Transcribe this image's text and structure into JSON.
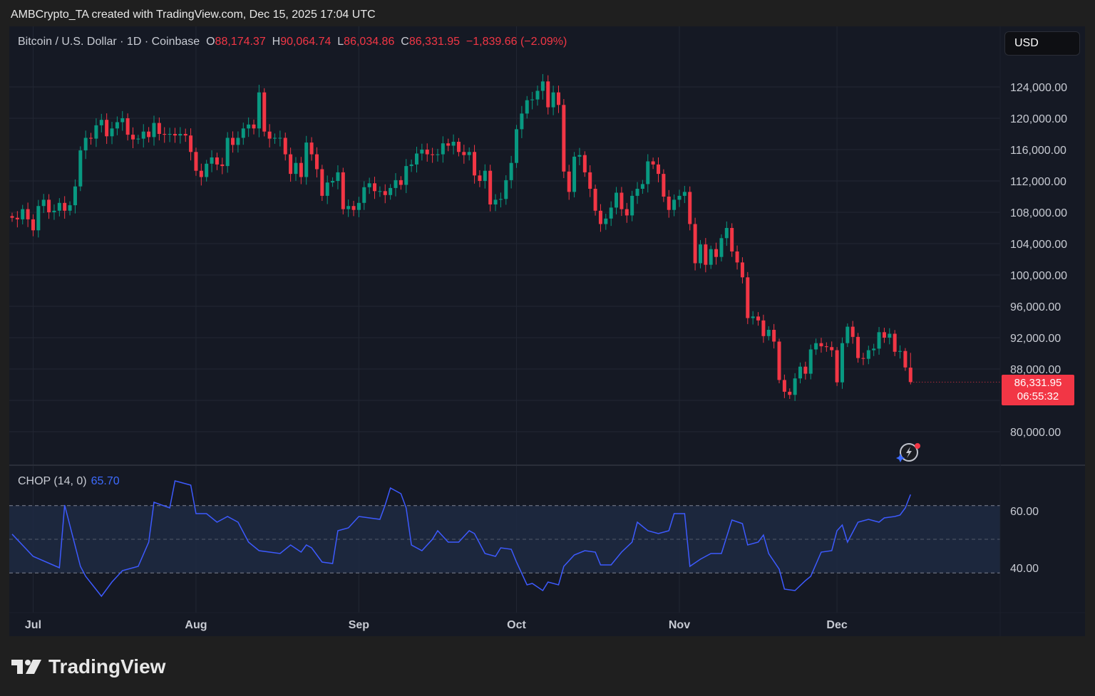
{
  "credit": "AMBCrypto_TA created with TradingView.com, Dec 15, 2025 17:04 UTC",
  "legend": {
    "symbol": "Bitcoin / U.S. Dollar · 1D · Coinbase",
    "o_label": "O",
    "o": "88,174.37",
    "h_label": "H",
    "h": "90,064.74",
    "l_label": "L",
    "l": "86,034.86",
    "c_label": "C",
    "c": "86,331.95",
    "change": "−1,839.66 (−2.09%)"
  },
  "currency_button": "USD",
  "price_tag": {
    "price": "86,331.95",
    "countdown": "06:55:32"
  },
  "indicator": {
    "name": "CHOP (14, 0)",
    "value": "65.70"
  },
  "brand": "TradingView",
  "colors": {
    "up": "#089981",
    "down": "#f23645",
    "chop": "#3d5afe",
    "band": "#1e2a44"
  },
  "chart_data": [
    {
      "type": "candlestick",
      "title": "Bitcoin / U.S. Dollar · 1D · Coinbase",
      "start_date": "2025-06-27",
      "interval": "1D",
      "ylim": [
        76000,
        128500
      ],
      "y_ticks": [
        124000,
        120000,
        116000,
        112000,
        108000,
        104000,
        100000,
        96000,
        92000,
        88000,
        80000
      ],
      "y_tick_labels": [
        "124,000.00",
        "120,000.00",
        "116,000.00",
        "112,000.00",
        "108,000.00",
        "104,000.00",
        "100,000.00",
        "96,000.00",
        "92,000.00",
        "88,000.00",
        "80,000.00"
      ],
      "x_ticks": [
        {
          "label": "Jul",
          "day": 4
        },
        {
          "label": "Aug",
          "day": 35
        },
        {
          "label": "Sep",
          "day": 66
        },
        {
          "label": "Oct",
          "day": 96
        },
        {
          "label": "Nov",
          "day": 127
        },
        {
          "label": "Dec",
          "day": 157
        }
      ],
      "last_ohlc": {
        "open": 88174.37,
        "high": 90064.74,
        "low": 86034.86,
        "close": 86331.95
      },
      "closes": [
        107300,
        107100,
        108400,
        107100,
        105700,
        108800,
        109600,
        108000,
        108200,
        109200,
        108200,
        108900,
        111300,
        115900,
        117500,
        117400,
        119100,
        119800,
        117700,
        118700,
        119500,
        120000,
        117900,
        117300,
        117400,
        118300,
        117600,
        119400,
        118000,
        117900,
        118000,
        117800,
        118000,
        117800,
        115700,
        113300,
        112500,
        114200,
        115000,
        114100,
        113900,
        117500,
        116600,
        117500,
        118700,
        119200,
        118700,
        123300,
        118300,
        117400,
        117500,
        117500,
        115400,
        112900,
        114300,
        112500,
        116900,
        115400,
        113500,
        110100,
        111800,
        112000,
        113100,
        108400,
        108800,
        108300,
        109200,
        111200,
        111700,
        110700,
        110700,
        110200,
        111100,
        112100,
        111500,
        113900,
        114100,
        115500,
        116000,
        115400,
        115300,
        115400,
        116800,
        116500,
        117000,
        115700,
        115300,
        115700,
        112700,
        112000,
        113300,
        109000,
        109600,
        109700,
        112100,
        114300,
        118600,
        120600,
        122300,
        122400,
        123500,
        124700,
        121400,
        123300,
        121700,
        113200,
        110600,
        115100,
        115300,
        113100,
        111000,
        108200,
        106500,
        107200,
        108600,
        110500,
        108400,
        107600,
        110100,
        111000,
        111600,
        114500,
        114100,
        112900,
        110000,
        108300,
        109600,
        110100,
        110600,
        106500,
        101500,
        103900,
        101300,
        103300,
        102300,
        104700,
        106000,
        103000,
        101600,
        99700,
        94500,
        94700,
        94200,
        92200,
        93000,
        91500,
        86600,
        85100,
        84700,
        86800,
        88300,
        87400,
        90500,
        91300,
        90900,
        90800,
        90400,
        86300,
        91300,
        93400,
        92100,
        89400,
        89300,
        90400,
        90600,
        92700,
        92000,
        92500,
        90200,
        90300,
        88200,
        86331.95
      ]
    },
    {
      "type": "line",
      "title": "CHOP (14, 0)",
      "ylim": [
        25,
        75
      ],
      "bands": {
        "upper": 61.8,
        "middle": 50,
        "lower": 38.2
      },
      "y_ticks": [
        60,
        40
      ],
      "y_tick_labels": [
        "60.00",
        "40.00"
      ],
      "points": [
        [
          0,
          51.8
        ],
        [
          4,
          44
        ],
        [
          9,
          40
        ],
        [
          10,
          62
        ],
        [
          13,
          40.5
        ],
        [
          14,
          37
        ],
        [
          17,
          30
        ],
        [
          19,
          35
        ],
        [
          21,
          39
        ],
        [
          24,
          40.5
        ],
        [
          26,
          49
        ],
        [
          27,
          63
        ],
        [
          30,
          61
        ],
        [
          31,
          70.5
        ],
        [
          34,
          69
        ],
        [
          35,
          59
        ],
        [
          37,
          59
        ],
        [
          39,
          56
        ],
        [
          41,
          58
        ],
        [
          43,
          56
        ],
        [
          45,
          49
        ],
        [
          47,
          46
        ],
        [
          51,
          45
        ],
        [
          53,
          48
        ],
        [
          55,
          45.5
        ],
        [
          56,
          48
        ],
        [
          57,
          47
        ],
        [
          59,
          42
        ],
        [
          61,
          41.5
        ],
        [
          62,
          53
        ],
        [
          64,
          54
        ],
        [
          66,
          58
        ],
        [
          70,
          57
        ],
        [
          71,
          62
        ],
        [
          72,
          68
        ],
        [
          74,
          66
        ],
        [
          75,
          61
        ],
        [
          76,
          48
        ],
        [
          78,
          46
        ],
        [
          80,
          50
        ],
        [
          81,
          53
        ],
        [
          83,
          49
        ],
        [
          85,
          49
        ],
        [
          87,
          53
        ],
        [
          88,
          52
        ],
        [
          90,
          45
        ],
        [
          92,
          44
        ],
        [
          93,
          47
        ],
        [
          95,
          46.5
        ],
        [
          96,
          42
        ],
        [
          98,
          34
        ],
        [
          99,
          34.5
        ],
        [
          101,
          32
        ],
        [
          102,
          35
        ],
        [
          104,
          34
        ],
        [
          105,
          40.5
        ],
        [
          107,
          44.5
        ],
        [
          109,
          46
        ],
        [
          111,
          45.5
        ],
        [
          112,
          41
        ],
        [
          114,
          41
        ],
        [
          116,
          45.5
        ],
        [
          118,
          49
        ],
        [
          119,
          56
        ],
        [
          121,
          53
        ],
        [
          123,
          52
        ],
        [
          125,
          53
        ],
        [
          126,
          59
        ],
        [
          128,
          59
        ],
        [
          129,
          40.5
        ],
        [
          131,
          43
        ],
        [
          133,
          45
        ],
        [
          135,
          45
        ],
        [
          137,
          56.75
        ],
        [
          139,
          55.5
        ],
        [
          140,
          48
        ],
        [
          142,
          49
        ],
        [
          143,
          51.5
        ],
        [
          144,
          45
        ],
        [
          146,
          39.5
        ],
        [
          147,
          32.5
        ],
        [
          149,
          32
        ],
        [
          151,
          35.5
        ],
        [
          152,
          37
        ],
        [
          154,
          45.5
        ],
        [
          156,
          46
        ],
        [
          157,
          53
        ],
        [
          158,
          55
        ],
        [
          159,
          49
        ],
        [
          161,
          56
        ],
        [
          163,
          57
        ],
        [
          165,
          56
        ],
        [
          166,
          57.5
        ],
        [
          168,
          58
        ],
        [
          169,
          58.5
        ],
        [
          170,
          61
        ],
        [
          171,
          65.7
        ]
      ]
    }
  ]
}
